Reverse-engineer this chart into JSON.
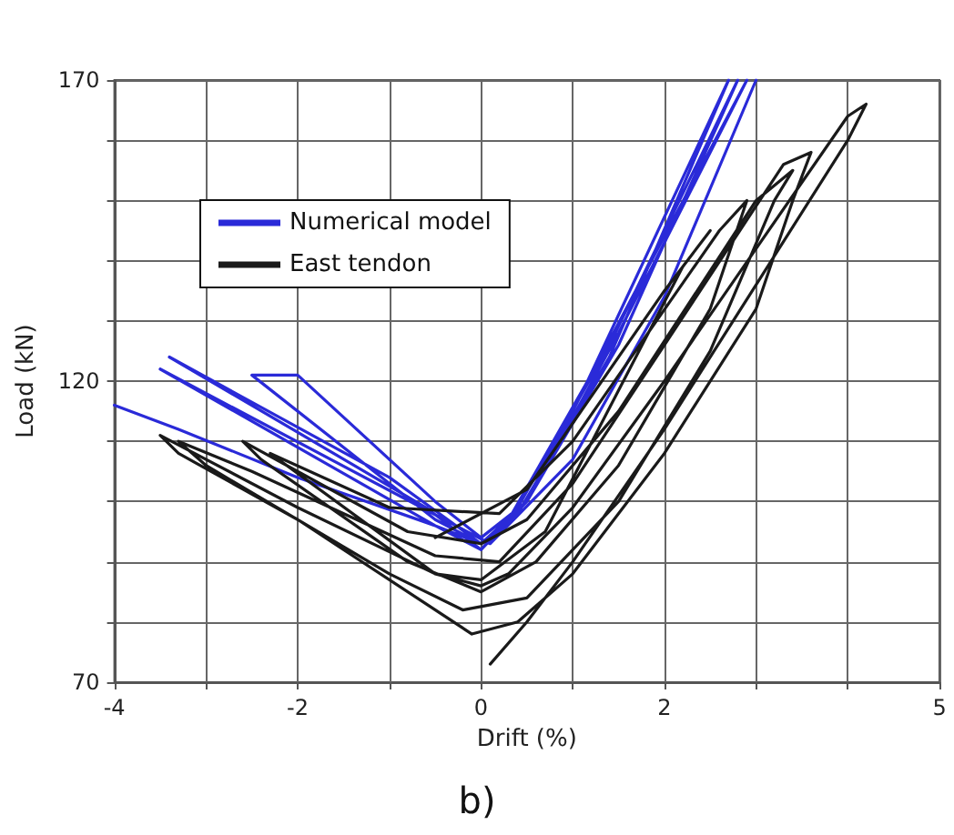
{
  "chart_data": {
    "type": "line",
    "xlabel": "Drift (%)",
    "ylabel": "Load (kN)",
    "annotations": [
      "b)"
    ],
    "xlim": [
      -4,
      5
    ],
    "ylim": [
      70,
      170
    ],
    "xticks": [
      -4,
      {
        "value": -3,
        "label": null
      },
      -2,
      {
        "value": -1,
        "label": null
      },
      0,
      {
        "value": 1,
        "label": null
      },
      2,
      {
        "value": 3,
        "label": null
      },
      {
        "value": 4,
        "label": null
      },
      5
    ],
    "yticks": [
      70,
      {
        "value": 80,
        "label": null
      },
      {
        "value": 90,
        "label": null
      },
      {
        "value": 100,
        "label": null
      },
      {
        "value": 110,
        "label": null
      },
      120,
      {
        "value": 130,
        "label": null
      },
      {
        "value": 140,
        "label": null
      },
      {
        "value": 150,
        "label": null
      },
      {
        "value": 160,
        "label": null
      },
      170
    ],
    "grid": true,
    "legend": "top left",
    "marker": "none",
    "line_style": "solid",
    "series": [
      {
        "name": "Numerical model",
        "color": "#2a2ad8",
        "x": [
          -4,
          -3.3,
          -2,
          -0.5,
          0,
          0.5,
          1.5,
          2.9,
          1.2,
          0.3,
          0,
          -0.5,
          -2.5,
          -2,
          -0.5,
          0,
          0.5,
          1.5,
          2.8,
          1.4,
          0.4,
          0,
          -0.6,
          -3.4,
          -1,
          0,
          0.4,
          1.4,
          2.7,
          1.1,
          0.5,
          0,
          -0.5,
          -3.5,
          -0.4,
          0.1,
          1,
          2,
          3.0
        ],
        "values": [
          116,
          112,
          104,
          96,
          93,
          100,
          128,
          170,
          121,
          97,
          93,
          97,
          121,
          121,
          100,
          94,
          100,
          126,
          170,
          126,
          99,
          92,
          99,
          124,
          104,
          93,
          98,
          124,
          170,
          118,
          100,
          92,
          96,
          122,
          97,
          93,
          107,
          134,
          170
        ]
      },
      {
        "name": "East tendon",
        "color": "#1a1a1a",
        "x": [
          0.1,
          0.5,
          1,
          2,
          3,
          4,
          4.2,
          4,
          3,
          2,
          1,
          0.3,
          0,
          -0.5,
          -2,
          -3.5,
          -3.3,
          -2,
          -0.6,
          -0.1,
          0.4,
          1,
          2,
          3,
          3.4,
          3.6,
          3.3,
          2,
          1,
          0.2,
          -0.5,
          -2.5,
          -3.3,
          -3,
          -1,
          -0.2,
          0.5,
          1.5,
          2.5,
          3.2,
          3.4,
          3,
          1.5,
          0.5,
          0,
          -0.8,
          -2.6,
          -2.4,
          -0.8,
          0,
          0.6,
          1.5,
          2.5,
          2.9,
          2.6,
          1,
          0.2,
          -1,
          -2.3,
          -0.5,
          0,
          0.7,
          2.2,
          2.5,
          2,
          0.5,
          -0.5
        ],
        "values": [
          73,
          80,
          90,
          112,
          136,
          160,
          166,
          164,
          142,
          120,
          99,
          88,
          86,
          88,
          99,
          111,
          108,
          97,
          83,
          78,
          80,
          88,
          108,
          132,
          150,
          158,
          156,
          126,
          103,
          90,
          91,
          105,
          110,
          106,
          88,
          82,
          84,
          100,
          125,
          150,
          155,
          150,
          115,
          97,
          93,
          95,
          110,
          107,
          90,
          85,
          90,
          106,
          132,
          150,
          145,
          110,
          98,
          99,
          108,
          88,
          87,
          95,
          139,
          145,
          135,
          102,
          94
        ]
      }
    ]
  }
}
